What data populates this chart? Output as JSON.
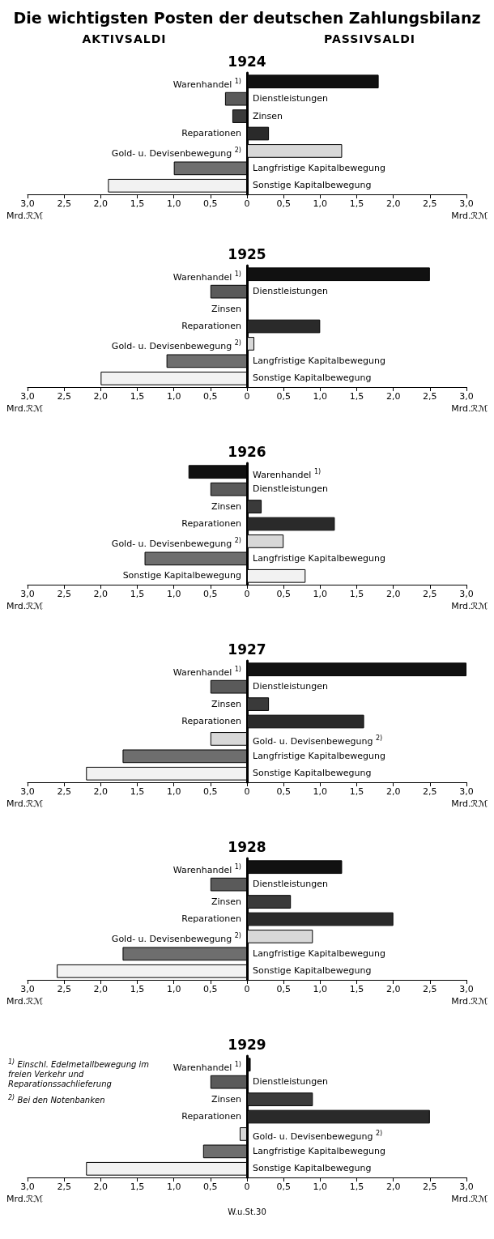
{
  "chart_data": [
    {
      "type": "bar",
      "orientation": "horizontal",
      "title": "Die wichtigsten Posten der deutschen Zahlungsbilanz",
      "subtitle": "1924",
      "annotations": [
        "AKTIVSALDI",
        "PASSIVSALDI"
      ],
      "xlabel": "Mrd.ℛℳ",
      "categories": [
        "Warenhandel $^{1)}$",
        "Dienstleistungen",
        "Zinsen",
        "Reparationen",
        "Gold- u. Devisenbewegung $^{2)}$",
        "Langfristige Kapitalbewegung",
        "Sonstige Kapitalbewegung"
      ],
      "values": [
        1.8,
        -0.3,
        -0.2,
        0.3,
        1.3,
        -1.0,
        -1.9
      ],
      "colors": [
        "#111111",
        "#5a5a5a",
        "#3a3a3a",
        "#2a2a2a",
        "#d8d8d8",
        "#6e6e6e",
        "#f2f2f2"
      ],
      "xlim": [
        -3,
        3
      ],
      "xticks": [
        {
          "value": -3,
          "label": "3,0"
        },
        {
          "value": -2.5,
          "label": "2,5"
        },
        {
          "value": -2,
          "label": "2,0"
        },
        {
          "value": -1.5,
          "label": "1,5"
        },
        {
          "value": -1,
          "label": "1,0"
        },
        {
          "value": -0.5,
          "label": "0,5"
        },
        {
          "value": 0,
          "label": "0"
        },
        {
          "value": 0.5,
          "label": "0,5"
        },
        {
          "value": 1,
          "label": "1,0"
        },
        {
          "value": 1.5,
          "label": "1,5"
        },
        {
          "value": 2,
          "label": "2,0"
        },
        {
          "value": 2.5,
          "label": "2,5"
        },
        {
          "value": 3,
          "label": "3,0"
        }
      ]
    },
    {
      "type": "bar",
      "orientation": "horizontal",
      "title": "1925",
      "xlabel": "Mrd.ℛℳ",
      "categories": [
        "Warenhandel $^{1)}$",
        "Dienstleistungen",
        "Zinsen",
        "Reparationen",
        "Gold- u. Devisenbewegung $^{2)}$",
        "Langfristige Kapitalbewegung",
        "Sonstige Kapitalbewegung"
      ],
      "values": [
        2.5,
        -0.5,
        null,
        1.0,
        0.1,
        -1.1,
        -2.0
      ],
      "colors": [
        "#111111",
        "#5a5a5a",
        null,
        "#2a2a2a",
        "#d8d8d8",
        "#6e6e6e",
        "#f2f2f2"
      ],
      "xlim": [
        -3,
        3
      ],
      "xticks": [
        {
          "value": -3,
          "label": "3,0"
        },
        {
          "value": -2.5,
          "label": "2,5"
        },
        {
          "value": -2,
          "label": "2,0"
        },
        {
          "value": -1.5,
          "label": "1,5"
        },
        {
          "value": -1,
          "label": "1,0"
        },
        {
          "value": -0.5,
          "label": "0,5"
        },
        {
          "value": 0,
          "label": "0"
        },
        {
          "value": 0.5,
          "label": "0,5"
        },
        {
          "value": 1,
          "label": "1,0"
        },
        {
          "value": 1.5,
          "label": "1,5"
        },
        {
          "value": 2,
          "label": "2,0"
        },
        {
          "value": 2.5,
          "label": "2,5"
        },
        {
          "value": 3,
          "label": "3,0"
        }
      ]
    },
    {
      "type": "bar",
      "orientation": "horizontal",
      "title": "1926",
      "xlabel": "Mrd.ℛℳ",
      "categories": [
        "Warenhandel $^{1)}$",
        "Dienstleistungen",
        "Zinsen",
        "Reparationen",
        "Gold- u. Devisenbewegung $^{2)}$",
        "Langfristige Kapitalbewegung",
        "Sonstige Kapitalbewegung"
      ],
      "values": [
        -0.8,
        -0.5,
        0.2,
        1.2,
        0.5,
        -1.4,
        0.8
      ],
      "colors": [
        "#111111",
        "#5a5a5a",
        "#3a3a3a",
        "#2a2a2a",
        "#d8d8d8",
        "#6e6e6e",
        "#f2f2f2"
      ],
      "xlim": [
        -3,
        3
      ],
      "xticks": [
        {
          "value": -3,
          "label": "3,0"
        },
        {
          "value": -2.5,
          "label": "2,5"
        },
        {
          "value": -2,
          "label": "2,0"
        },
        {
          "value": -1.5,
          "label": "1,5"
        },
        {
          "value": -1,
          "label": "1,0"
        },
        {
          "value": -0.5,
          "label": "0,5"
        },
        {
          "value": 0,
          "label": "0"
        },
        {
          "value": 0.5,
          "label": "0,5"
        },
        {
          "value": 1,
          "label": "1,0"
        },
        {
          "value": 1.5,
          "label": "1,5"
        },
        {
          "value": 2,
          "label": "2,0"
        },
        {
          "value": 2.5,
          "label": "2,5"
        },
        {
          "value": 3,
          "label": "3,0"
        }
      ]
    },
    {
      "type": "bar",
      "orientation": "horizontal",
      "title": "1927",
      "xlabel": "Mrd.ℛℳ",
      "categories": [
        "Warenhandel $^{1)}$",
        "Dienstleistungen",
        "Zinsen",
        "Reparationen",
        "Gold- u. Devisenbewegung $^{2)}$",
        "Langfristige Kapitalbewegung",
        "Sonstige Kapitalbewegung"
      ],
      "values": [
        3.0,
        -0.5,
        0.3,
        1.6,
        -0.5,
        -1.7,
        -2.2
      ],
      "colors": [
        "#111111",
        "#5a5a5a",
        "#3a3a3a",
        "#2a2a2a",
        "#d8d8d8",
        "#6e6e6e",
        "#f2f2f2"
      ],
      "xlim": [
        -3,
        3
      ],
      "xticks": [
        {
          "value": -3,
          "label": "3,0"
        },
        {
          "value": -2.5,
          "label": "2,5"
        },
        {
          "value": -2,
          "label": "2,0"
        },
        {
          "value": -1.5,
          "label": "1,5"
        },
        {
          "value": -1,
          "label": "1,0"
        },
        {
          "value": -0.5,
          "label": "0,5"
        },
        {
          "value": 0,
          "label": "0"
        },
        {
          "value": 0.5,
          "label": "0,5"
        },
        {
          "value": 1,
          "label": "1,0"
        },
        {
          "value": 1.5,
          "label": "1,5"
        },
        {
          "value": 2,
          "label": "2,0"
        },
        {
          "value": 2.5,
          "label": "2,5"
        },
        {
          "value": 3,
          "label": "3,0"
        }
      ]
    },
    {
      "type": "bar",
      "orientation": "horizontal",
      "title": "1928",
      "xlabel": "Mrd.ℛℳ",
      "categories": [
        "Warenhandel $^{1)}$",
        "Dienstleistungen",
        "Zinsen",
        "Reparationen",
        "Gold- u. Devisenbewegung $^{2)}$",
        "Langfristige Kapitalbewegung",
        "Sonstige Kapitalbewegung"
      ],
      "values": [
        1.3,
        -0.5,
        0.6,
        2.0,
        0.9,
        -1.7,
        -2.6
      ],
      "colors": [
        "#111111",
        "#5a5a5a",
        "#3a3a3a",
        "#2a2a2a",
        "#d8d8d8",
        "#6e6e6e",
        "#f2f2f2"
      ],
      "xlim": [
        -3,
        3
      ],
      "xticks": [
        {
          "value": -3,
          "label": "3,0"
        },
        {
          "value": -2.5,
          "label": "2,5"
        },
        {
          "value": -2,
          "label": "2,0"
        },
        {
          "value": -1.5,
          "label": "1,5"
        },
        {
          "value": -1,
          "label": "1,0"
        },
        {
          "value": -0.5,
          "label": "0,5"
        },
        {
          "value": 0,
          "label": "0"
        },
        {
          "value": 0.5,
          "label": "0,5"
        },
        {
          "value": 1,
          "label": "1,0"
        },
        {
          "value": 1.5,
          "label": "1,5"
        },
        {
          "value": 2,
          "label": "2,0"
        },
        {
          "value": 2.5,
          "label": "2,5"
        },
        {
          "value": 3,
          "label": "3,0"
        }
      ]
    },
    {
      "type": "bar",
      "orientation": "horizontal",
      "title": "1929",
      "xlabel": "Mrd.ℛℳ",
      "annotations": [
        "$^{1)}$ Einschl. Edelmetallbewegung im freien Verkehr und Reparationssachlieferung",
        "$^{2)}$ Bei den Notenbanken",
        "W.u.St.30"
      ],
      "categories": [
        "Warenhandel $^{1)}$",
        "Dienstleistungen",
        "Zinsen",
        "Reparationen",
        "Gold- u. Devisenbewegung $^{2)}$",
        "Langfristige Kapitalbewegung",
        "Sonstige Kapitalbewegung"
      ],
      "values": [
        0.05,
        -0.5,
        0.9,
        2.5,
        -0.1,
        -0.6,
        -2.2
      ],
      "colors": [
        "#111111",
        "#5a5a5a",
        "#3a3a3a",
        "#2a2a2a",
        "#d8d8d8",
        "#6e6e6e",
        "#f2f2f2"
      ],
      "xlim": [
        -3,
        3
      ],
      "xticks": [
        {
          "value": -3,
          "label": "3,0"
        },
        {
          "value": -2.5,
          "label": "2,5"
        },
        {
          "value": -2,
          "label": "2,0"
        },
        {
          "value": -1.5,
          "label": "1,5"
        },
        {
          "value": -1,
          "label": "1,0"
        },
        {
          "value": -0.5,
          "label": "0,5"
        },
        {
          "value": 0,
          "label": "0"
        },
        {
          "value": 0.5,
          "label": "0,5"
        },
        {
          "value": 1,
          "label": "1,0"
        },
        {
          "value": 1.5,
          "label": "1,5"
        },
        {
          "value": 2,
          "label": "2,0"
        },
        {
          "value": 2.5,
          "label": "2,5"
        },
        {
          "value": 3,
          "label": "3,0"
        }
      ]
    }
  ]
}
